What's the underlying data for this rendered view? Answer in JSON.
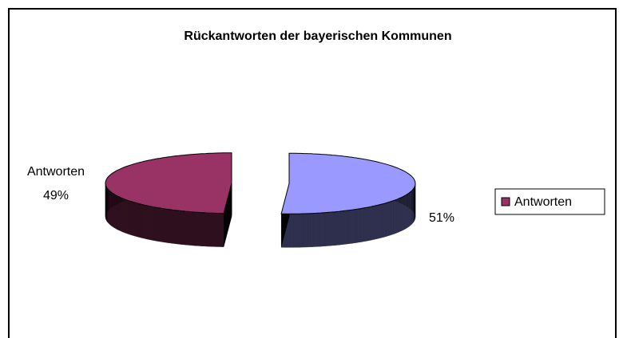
{
  "chart_data": {
    "type": "pie3d",
    "title": "Rückantworten der bayerischen Kommunen",
    "categories": [
      null,
      "Antworten"
    ],
    "values": [
      51,
      49
    ],
    "value_labels": [
      "51%",
      "49%"
    ],
    "colors": [
      "#9999ff",
      "#993366"
    ],
    "legend": "right"
  }
}
